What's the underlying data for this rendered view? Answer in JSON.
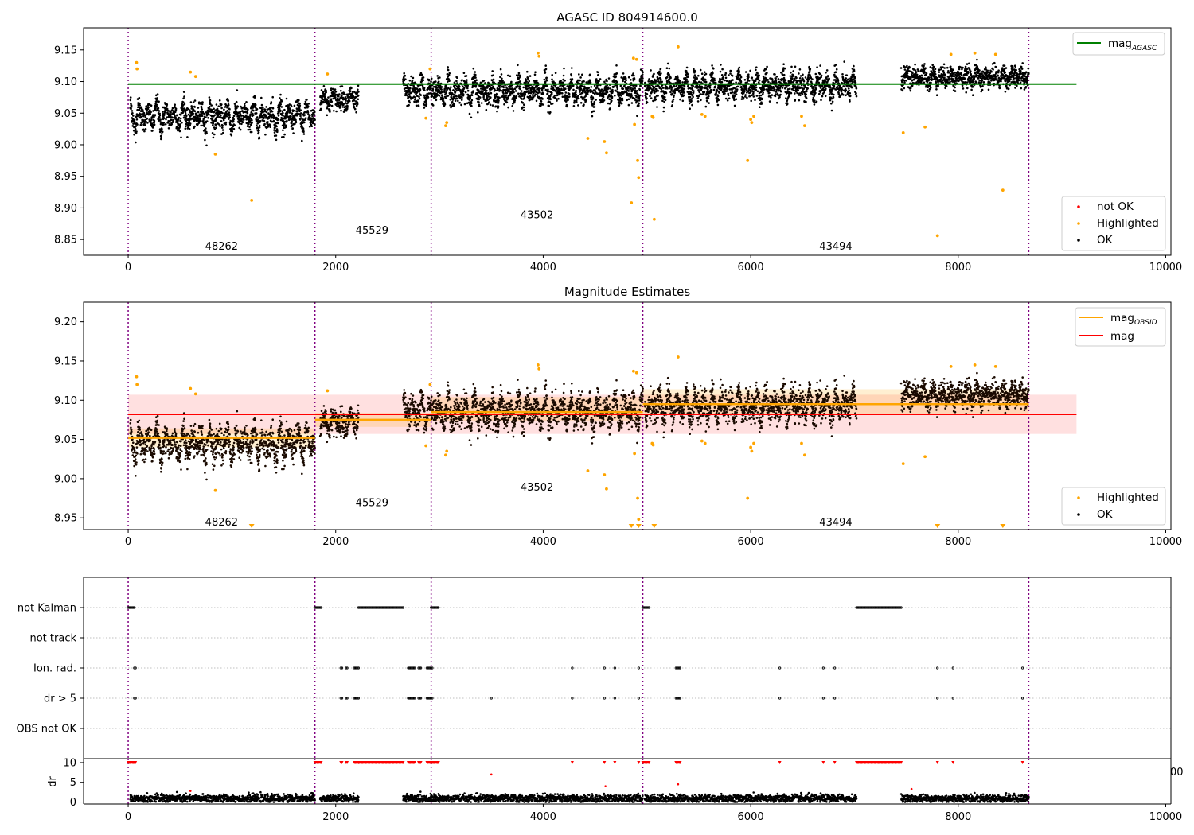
{
  "chart_data": [
    {
      "type": "scatter",
      "title": "AGASC ID 804914600.0",
      "xlim": [
        -430,
        10050
      ],
      "ylim": [
        8.825,
        9.185
      ],
      "xticks": [
        0,
        2000,
        4000,
        6000,
        8000,
        10000
      ],
      "yticks": [
        8.85,
        8.9,
        8.95,
        9.0,
        9.05,
        9.1,
        9.15
      ],
      "xtick_labels": [
        "0",
        "2000",
        "4000",
        "6000",
        "8000",
        "10000"
      ],
      "ytick_labels": [
        "8.85",
        "8.90",
        "8.95",
        "9.00",
        "9.05",
        "9.10",
        "9.15"
      ],
      "obs_boundaries": [
        0,
        1800,
        2920,
        4960,
        8680
      ],
      "obsid_labels": [
        {
          "text": "48262",
          "x": 900,
          "y": 8.84
        },
        {
          "text": "45529",
          "x": 2350,
          "y": 8.865
        },
        {
          "text": "43502",
          "x": 3940,
          "y": 8.89
        },
        {
          "text": "43494",
          "x": 6820,
          "y": 8.84
        }
      ],
      "mag_agasc": 9.096,
      "mag_agasc_xrange": [
        0,
        9140
      ],
      "legend_upper": [
        {
          "label": "mag",
          "sub": "AGASC",
          "color": "#008000"
        }
      ],
      "legend_lower": [
        {
          "label": "not OK",
          "color": "#ff0000"
        },
        {
          "label": "Highlighted",
          "color": "#ffa500"
        },
        {
          "label": "OK",
          "color": "#000000"
        }
      ],
      "highlighted_points": [
        {
          "x": 80,
          "y": 9.13
        },
        {
          "x": 85,
          "y": 9.12
        },
        {
          "x": 600,
          "y": 9.115
        },
        {
          "x": 650,
          "y": 9.108
        },
        {
          "x": 840,
          "y": 8.985
        },
        {
          "x": 1190,
          "y": 8.912
        },
        {
          "x": 1920,
          "y": 9.112
        },
        {
          "x": 2870,
          "y": 9.042
        },
        {
          "x": 2910,
          "y": 9.12
        },
        {
          "x": 3060,
          "y": 9.03
        },
        {
          "x": 3070,
          "y": 9.035
        },
        {
          "x": 3950,
          "y": 9.145
        },
        {
          "x": 3960,
          "y": 9.14
        },
        {
          "x": 4430,
          "y": 9.01
        },
        {
          "x": 4590,
          "y": 9.005
        },
        {
          "x": 4610,
          "y": 8.987
        },
        {
          "x": 4850,
          "y": 8.908
        },
        {
          "x": 4870,
          "y": 9.137
        },
        {
          "x": 4880,
          "y": 9.032
        },
        {
          "x": 4900,
          "y": 9.135
        },
        {
          "x": 4910,
          "y": 8.975
        },
        {
          "x": 4920,
          "y": 8.948
        },
        {
          "x": 5050,
          "y": 9.045
        },
        {
          "x": 5060,
          "y": 9.043
        },
        {
          "x": 5070,
          "y": 8.882
        },
        {
          "x": 5300,
          "y": 9.155
        },
        {
          "x": 5530,
          "y": 9.048
        },
        {
          "x": 5560,
          "y": 9.045
        },
        {
          "x": 5970,
          "y": 8.975
        },
        {
          "x": 6000,
          "y": 9.04
        },
        {
          "x": 6010,
          "y": 9.035
        },
        {
          "x": 6030,
          "y": 9.045
        },
        {
          "x": 6490,
          "y": 9.045
        },
        {
          "x": 6520,
          "y": 9.03
        },
        {
          "x": 7470,
          "y": 9.019
        },
        {
          "x": 7680,
          "y": 9.028
        },
        {
          "x": 7800,
          "y": 8.856
        },
        {
          "x": 7930,
          "y": 9.143
        },
        {
          "x": 8160,
          "y": 9.145
        },
        {
          "x": 8360,
          "y": 9.143
        },
        {
          "x": 8430,
          "y": 8.928
        }
      ],
      "segments": [
        {
          "x0": 20,
          "x1": 1800,
          "base": 9.045,
          "amp": 0.02,
          "noise": 0.012
        },
        {
          "x0": 1850,
          "x1": 2220,
          "base": 9.072,
          "amp": 0.01,
          "noise": 0.01
        },
        {
          "x0": 2650,
          "x1": 4960,
          "base": 9.085,
          "amp": 0.018,
          "noise": 0.012
        },
        {
          "x0": 4980,
          "x1": 7020,
          "base": 9.093,
          "amp": 0.018,
          "noise": 0.012
        },
        {
          "x0": 7450,
          "x1": 8680,
          "base": 9.107,
          "amp": 0.008,
          "noise": 0.01
        }
      ]
    },
    {
      "type": "scatter",
      "title": "Magnitude Estimates",
      "xlim": [
        -430,
        10050
      ],
      "ylim": [
        8.935,
        9.225
      ],
      "xticks": [
        0,
        2000,
        4000,
        6000,
        8000,
        10000
      ],
      "yticks": [
        8.95,
        9.0,
        9.05,
        9.1,
        9.15,
        9.2
      ],
      "xtick_labels": [
        "0",
        "2000",
        "4000",
        "6000",
        "8000",
        "10000"
      ],
      "ytick_labels": [
        "8.95",
        "9.00",
        "9.05",
        "9.10",
        "9.15",
        "9.20"
      ],
      "obsid_labels": [
        {
          "text": "48262",
          "x": 900,
          "y": 8.945
        },
        {
          "text": "45529",
          "x": 2350,
          "y": 8.97
        },
        {
          "text": "43502",
          "x": 3940,
          "y": 8.99
        },
        {
          "text": "43494",
          "x": 6820,
          "y": 8.945
        }
      ],
      "mag": 9.082,
      "mag_band": [
        9.057,
        9.107
      ],
      "mag_xrange": [
        0,
        9140
      ],
      "mag_obsid": [
        {
          "x0": 0,
          "x1": 1800,
          "y": 9.052,
          "lo": 9.04,
          "hi": 9.064
        },
        {
          "x0": 1800,
          "x1": 2920,
          "y": 9.075,
          "lo": 9.066,
          "hi": 9.084
        },
        {
          "x0": 2920,
          "x1": 4960,
          "y": 9.085,
          "lo": 9.074,
          "hi": 9.104
        },
        {
          "x0": 4960,
          "x1": 8680,
          "y": 9.095,
          "lo": 9.083,
          "hi": 9.114
        }
      ],
      "legend_upper": [
        {
          "label": "mag",
          "sub": "OBSID",
          "color": "#ffa500"
        },
        {
          "label": "mag",
          "sub": "",
          "color": "#ff0000"
        }
      ],
      "legend_lower": [
        {
          "label": "Highlighted",
          "color": "#ffa500"
        },
        {
          "label": "OK",
          "color": "#000000"
        }
      ],
      "below_range_markers_x": [
        1190,
        4850,
        4920,
        5070,
        7800,
        8430
      ]
    },
    {
      "type": "scatter",
      "ylabel": "",
      "categories": [
        "not Kalman",
        "not track",
        "Ion. rad.",
        "dr > 5",
        "OBS not OK"
      ],
      "flags": {
        "not Kalman": [
          [
            0,
            60
          ],
          [
            1800,
            1860
          ],
          [
            2220,
            2650
          ],
          [
            2920,
            2990
          ],
          [
            4960,
            5020
          ],
          [
            7020,
            7450
          ]
        ],
        "not track": [],
        "Ion. rad.": [
          [
            60,
            70
          ],
          [
            2050,
            2060
          ],
          [
            2100,
            2110
          ],
          [
            2180,
            2220
          ],
          [
            2700,
            2760
          ],
          [
            2800,
            2820
          ],
          [
            2880,
            2930
          ],
          [
            4280,
            4280
          ],
          [
            4590,
            4590
          ],
          [
            4690,
            4690
          ],
          [
            4920,
            4920
          ],
          [
            5280,
            5320
          ],
          [
            6280,
            6280
          ],
          [
            6700,
            6700
          ],
          [
            6810,
            6810
          ],
          [
            7800,
            7800
          ],
          [
            7950,
            7950
          ],
          [
            8620,
            8620
          ]
        ],
        "dr > 5": [
          [
            60,
            70
          ],
          [
            2050,
            2060
          ],
          [
            2100,
            2110
          ],
          [
            2180,
            2220
          ],
          [
            2700,
            2760
          ],
          [
            2800,
            2820
          ],
          [
            2880,
            2930
          ],
          [
            3500,
            3500
          ],
          [
            4280,
            4280
          ],
          [
            4590,
            4590
          ],
          [
            4690,
            4690
          ],
          [
            4920,
            4920
          ],
          [
            5280,
            5320
          ],
          [
            6280,
            6280
          ],
          [
            6700,
            6700
          ],
          [
            6810,
            6810
          ],
          [
            7800,
            7800
          ],
          [
            7950,
            7950
          ],
          [
            8620,
            8620
          ]
        ],
        "OBS not OK": []
      }
    },
    {
      "type": "scatter",
      "ylabel": "dr",
      "xlim": [
        -430,
        10050
      ],
      "ylim": [
        -0.5,
        11
      ],
      "yticks": [
        0,
        5,
        10
      ],
      "ytick_labels": [
        "0",
        "5",
        "10"
      ],
      "xticks": [
        0,
        2000,
        4000,
        6000,
        8000,
        10000
      ],
      "xtick_labels": [
        "0",
        "2000",
        "4000",
        "6000",
        "8000",
        "10000"
      ],
      "dr_clipped": 10,
      "dr_outliers": [
        {
          "x": 600,
          "y": 2.8
        },
        {
          "x": 3500,
          "y": 7
        },
        {
          "x": 4600,
          "y": 4
        },
        {
          "x": 5300,
          "y": 4.5
        },
        {
          "x": 7550,
          "y": 3.3
        }
      ],
      "gap_ranges": [
        [
          2220,
          2650
        ],
        [
          7020,
          7450
        ]
      ]
    }
  ]
}
